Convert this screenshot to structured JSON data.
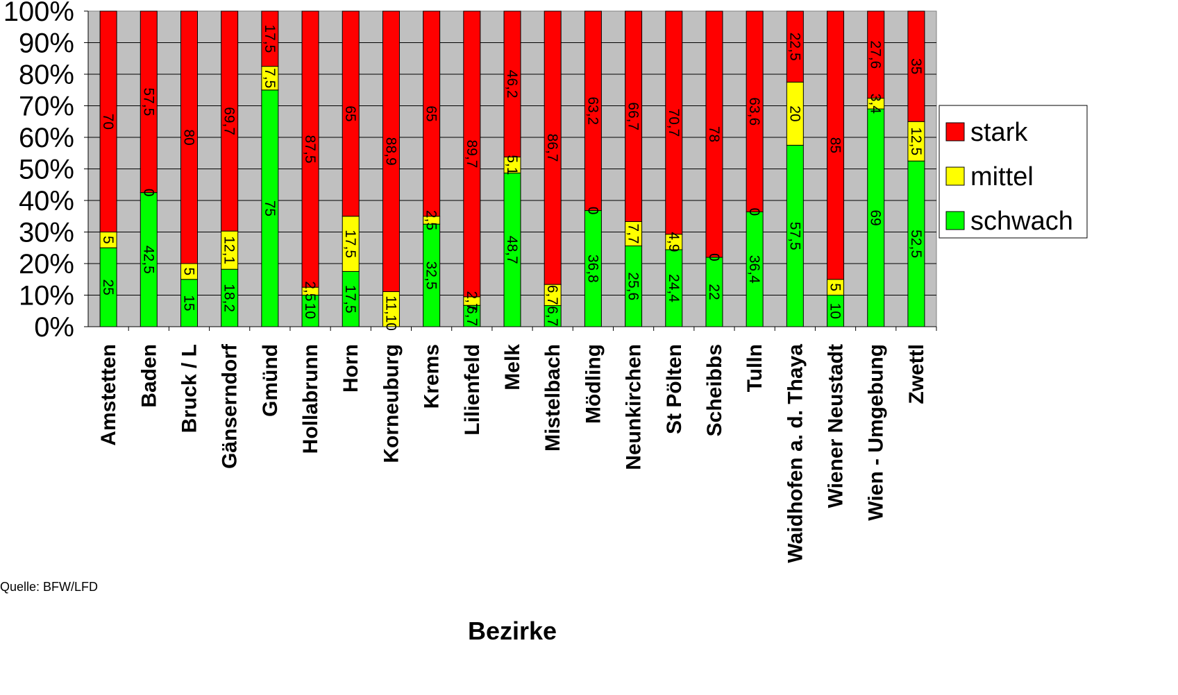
{
  "chart_data": {
    "type": "bar",
    "stacked": true,
    "percent_stacked": true,
    "xlabel": "Bezirke",
    "source": "Quelle: BFW/LFD",
    "legend_position": "right",
    "ylim": [
      0,
      100
    ],
    "y_ticks": [
      "0%",
      "10%",
      "20%",
      "30%",
      "40%",
      "50%",
      "60%",
      "70%",
      "80%",
      "90%",
      "100%"
    ],
    "plot_background": "#c0c0c0",
    "grid": true,
    "categories": [
      "Amstetten",
      "Baden",
      "Bruck / L",
      "Gänserndorf",
      "Gmünd",
      "Hollabrunn",
      "Horn",
      "Korneuburg",
      "Krems",
      "Lilienfeld",
      "Melk",
      "Mistelbach",
      "Mödling",
      "Neunkirchen",
      "St Pölten",
      "Scheibbs",
      "Tulln",
      "Waidhofen a. d. Thaya",
      "Wiener Neustadt",
      "Wien - Umgebung",
      "Zwettl"
    ],
    "series": [
      {
        "name": "schwach",
        "color": "#00ff00",
        "values": [
          25,
          42.5,
          15,
          18.2,
          75,
          10,
          17.5,
          0,
          32.5,
          6.7,
          48.7,
          6.7,
          36.8,
          25.6,
          24.4,
          22,
          36.4,
          57.5,
          10,
          69,
          52.5
        ],
        "labels": [
          "25",
          "42,5",
          "15",
          "18,2",
          "75",
          "10",
          "17,5",
          "0",
          "32,5",
          "6,7",
          "48,7",
          "6,7",
          "36,8",
          "25,6",
          "24,4",
          "22",
          "36,4",
          "57,5",
          "10",
          "69",
          "52,5"
        ]
      },
      {
        "name": "mittel",
        "color": "#ffff00",
        "values": [
          5,
          0,
          5,
          12.1,
          7.5,
          2.5,
          17.5,
          11.1,
          2.5,
          2.7,
          5.1,
          6.7,
          0,
          7.7,
          4.9,
          0,
          0,
          20,
          5,
          3.4,
          12.5
        ],
        "labels": [
          "5",
          "0",
          "5",
          "12,1",
          "7,5",
          "2,5",
          "17,5",
          "11,1",
          "2,5",
          "2,7",
          "5,1",
          "6,7",
          "0",
          "7,7",
          "4,9",
          "0",
          "0",
          "20",
          "5",
          "3,4",
          "12,5"
        ]
      },
      {
        "name": "stark",
        "color": "#ff0000",
        "values": [
          70,
          57.5,
          80,
          69.7,
          17.5,
          87.5,
          65,
          88.9,
          65,
          89.7,
          46.2,
          86.7,
          63.2,
          66.7,
          70.7,
          78,
          63.6,
          22.5,
          85,
          27.6,
          35
        ],
        "labels": [
          "70",
          "57,5",
          "80",
          "69,7",
          "17,5",
          "87,5",
          "65",
          "88,9",
          "65",
          "89,7",
          "46,2",
          "86,7",
          "63,2",
          "66,7",
          "70,7",
          "78",
          "63,6",
          "22,5",
          "85",
          "27,6",
          "35"
        ]
      }
    ]
  }
}
